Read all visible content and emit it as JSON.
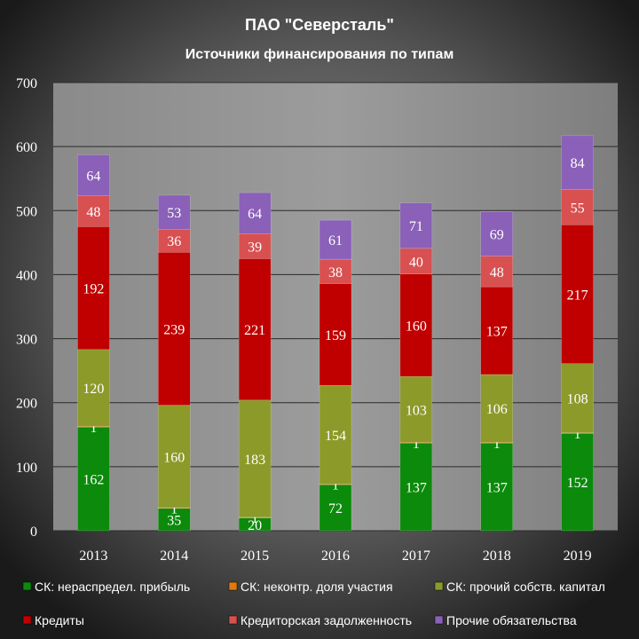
{
  "chart_data": {
    "type": "bar",
    "stacked": true,
    "title": "ПАО \"Северсталь\"",
    "subtitle": "Источники финансирования  по типам",
    "categories": [
      "2013",
      "2014",
      "2015",
      "2016",
      "2017",
      "2018",
      "2019"
    ],
    "ylim": [
      0,
      700
    ],
    "yticks": [
      0,
      100,
      200,
      300,
      400,
      500,
      600,
      700
    ],
    "grid": true,
    "legend_position": "bottom",
    "series": [
      {
        "name": "СК: нераспредел. прибыль",
        "color": "#0b8a0b",
        "values": [
          162,
          35,
          20,
          72,
          137,
          137,
          152
        ]
      },
      {
        "name": "СК: неконтр. доля участия",
        "color": "#e07a10",
        "values": [
          1,
          1,
          1,
          1,
          1,
          1,
          1
        ]
      },
      {
        "name": "СК: прочий собств. капитал",
        "color": "#8c9a2a",
        "values": [
          120,
          160,
          183,
          154,
          103,
          106,
          108
        ]
      },
      {
        "name": "Кредиты",
        "color": "#c00000",
        "values": [
          192,
          239,
          221,
          159,
          160,
          137,
          217
        ]
      },
      {
        "name": "Кредиторская задолженность",
        "color": "#d85050",
        "values": [
          48,
          36,
          39,
          38,
          40,
          48,
          55
        ]
      },
      {
        "name": "Прочие обязательства",
        "color": "#8a60b8",
        "values": [
          64,
          53,
          64,
          61,
          71,
          69,
          84
        ]
      }
    ]
  }
}
